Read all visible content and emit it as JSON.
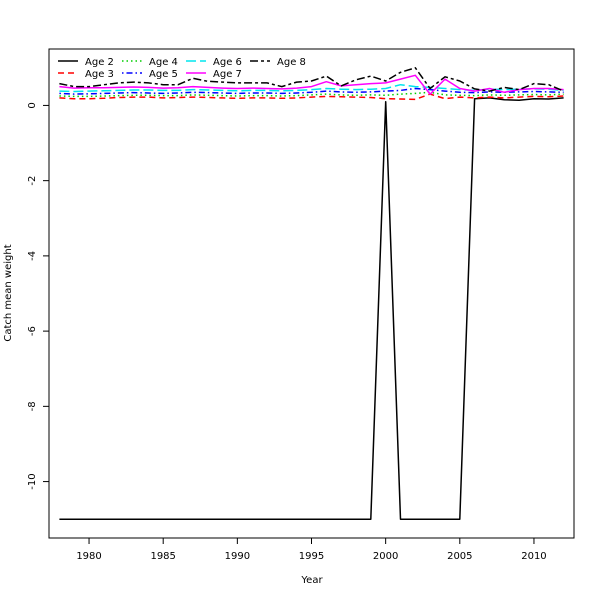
{
  "chart_data": {
    "type": "line",
    "title": "",
    "xlabel": "Year",
    "ylabel": "Catch mean weight",
    "xlim": [
      1977.3,
      2012.7
    ],
    "ylim": [
      -11.5,
      1.5
    ],
    "x_ticks": [
      1980,
      1985,
      1990,
      1995,
      2000,
      2005,
      2010
    ],
    "x_tick_labels": [
      "1980",
      "1985",
      "1990",
      "1995",
      "2000",
      "2005",
      "2010"
    ],
    "y_ticks": [
      0,
      -2,
      -4,
      -6,
      -8,
      -10
    ],
    "y_tick_labels": [
      "0",
      "-2",
      "-4",
      "-6",
      "-8",
      "-10"
    ],
    "legend_position": "top-left",
    "grid": false,
    "x": [
      1978,
      1979,
      1980,
      1981,
      1982,
      1983,
      1984,
      1985,
      1986,
      1987,
      1988,
      1989,
      1990,
      1991,
      1992,
      1993,
      1994,
      1995,
      1996,
      1997,
      1998,
      1999,
      2000,
      2001,
      2002,
      2003,
      2004,
      2005,
      2006,
      2007,
      2008,
      2009,
      2010,
      2011,
      2012
    ],
    "series": [
      {
        "name": "Age 2",
        "color": "#000000",
        "dash": "solid",
        "values": [
          -11,
          -11,
          -11,
          -11,
          -11,
          -11,
          -11,
          -11,
          -11,
          -11,
          -11,
          -11,
          -11,
          -11,
          -11,
          -11,
          -11,
          -11,
          -11,
          -11,
          -11,
          -11,
          0.1,
          -11,
          -11,
          -11,
          -11,
          -11,
          0.18,
          0.2,
          0.15,
          0.14,
          0.18,
          0.17,
          0.2
        ]
      },
      {
        "name": "Age 3",
        "color": "#ff0000",
        "dash": "dashed",
        "values": [
          0.2,
          0.18,
          0.18,
          0.19,
          0.21,
          0.22,
          0.22,
          0.2,
          0.21,
          0.22,
          0.21,
          0.2,
          0.19,
          0.2,
          0.2,
          0.19,
          0.2,
          0.22,
          0.24,
          0.23,
          0.22,
          0.21,
          0.18,
          0.17,
          0.16,
          0.3,
          0.18,
          0.22,
          0.2,
          0.22,
          0.2,
          0.22,
          0.24,
          0.23,
          0.25
        ]
      },
      {
        "name": "Age 4",
        "color": "#00cd00",
        "dash": "dotted",
        "values": [
          0.25,
          0.24,
          0.24,
          0.25,
          0.26,
          0.27,
          0.27,
          0.26,
          0.26,
          0.28,
          0.27,
          0.26,
          0.25,
          0.26,
          0.26,
          0.25,
          0.26,
          0.28,
          0.3,
          0.28,
          0.27,
          0.28,
          0.27,
          0.3,
          0.32,
          0.35,
          0.28,
          0.27,
          0.26,
          0.28,
          0.27,
          0.28,
          0.29,
          0.28,
          0.3
        ]
      },
      {
        "name": "Age 5",
        "color": "#0000ff",
        "dash": "dashdot",
        "values": [
          0.32,
          0.3,
          0.31,
          0.32,
          0.33,
          0.34,
          0.33,
          0.32,
          0.33,
          0.35,
          0.34,
          0.33,
          0.32,
          0.33,
          0.33,
          0.32,
          0.33,
          0.35,
          0.38,
          0.36,
          0.35,
          0.36,
          0.38,
          0.4,
          0.45,
          0.42,
          0.38,
          0.35,
          0.34,
          0.36,
          0.35,
          0.36,
          0.37,
          0.36,
          0.35
        ]
      },
      {
        "name": "Age 6",
        "color": "#00e5ee",
        "dash": "longdash",
        "values": [
          0.38,
          0.37,
          0.38,
          0.39,
          0.4,
          0.41,
          0.41,
          0.4,
          0.4,
          0.42,
          0.41,
          0.4,
          0.39,
          0.4,
          0.4,
          0.39,
          0.4,
          0.42,
          0.45,
          0.43,
          0.42,
          0.43,
          0.45,
          0.55,
          0.5,
          0.48,
          0.45,
          0.42,
          0.4,
          0.43,
          0.42,
          0.43,
          0.44,
          0.43,
          0.4
        ]
      },
      {
        "name": "Age 7",
        "color": "#ff00ff",
        "dash": "solid",
        "values": [
          0.5,
          0.46,
          0.47,
          0.47,
          0.48,
          0.49,
          0.48,
          0.46,
          0.47,
          0.5,
          0.48,
          0.46,
          0.45,
          0.46,
          0.45,
          0.44,
          0.46,
          0.5,
          0.63,
          0.52,
          0.55,
          0.58,
          0.6,
          0.7,
          0.8,
          0.3,
          0.7,
          0.45,
          0.38,
          0.45,
          0.35,
          0.42,
          0.45,
          0.45,
          0.42
        ]
      },
      {
        "name": "Age 8",
        "color": "#000000",
        "dash": "twodash",
        "values": [
          0.58,
          0.5,
          0.5,
          0.55,
          0.6,
          0.62,
          0.6,
          0.55,
          0.55,
          0.72,
          0.64,
          0.62,
          0.6,
          0.6,
          0.6,
          0.5,
          0.62,
          0.65,
          0.78,
          0.52,
          0.68,
          0.78,
          0.65,
          0.88,
          1.0,
          0.45,
          0.76,
          0.65,
          0.44,
          0.38,
          0.48,
          0.42,
          0.58,
          0.55,
          0.38
        ]
      }
    ]
  }
}
